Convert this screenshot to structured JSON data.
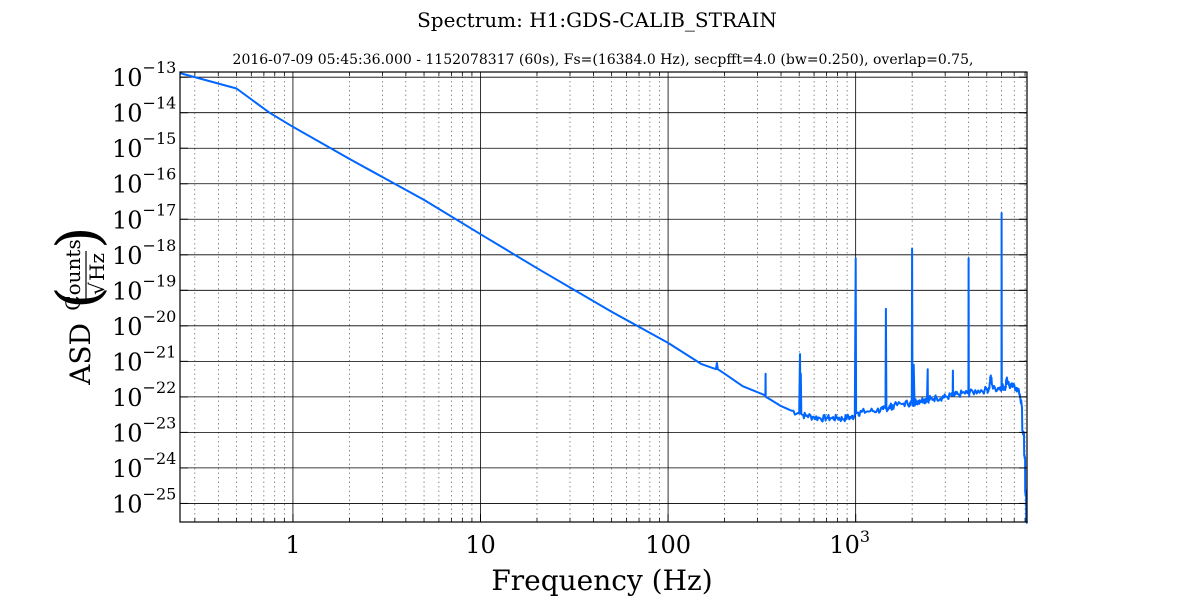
{
  "chart_data": {
    "type": "line",
    "title": "Spectrum: H1:GDS-CALIB_STRAIN",
    "subtitle": "2016-07-09 05:45:36.000 - 1152078317 (60s), Fs=(16384.0 Hz), secpfft=4.0 (bw=0.250), overlap=0.75,",
    "xlabel": "Frequency (Hz)",
    "ylabel": {
      "prefix": "ASD",
      "numerator": "Counts",
      "denominator": "Hz"
    },
    "x_scale": "log",
    "y_scale": "log",
    "xlim": [
      0.25,
      8192
    ],
    "ylim": [
      3e-26,
      1.4e-13
    ],
    "grid": true,
    "line_color": "#0066ff",
    "x_ticks": [
      {
        "value": 1,
        "label": "1"
      },
      {
        "value": 10,
        "label": "10"
      },
      {
        "value": 100,
        "label": "100"
      },
      {
        "value": 1000,
        "label": "10",
        "exponent": "3"
      }
    ],
    "y_ticks": [
      {
        "value": 1e-13,
        "label": "10",
        "exponent": "−13"
      },
      {
        "value": 1e-14,
        "label": "10",
        "exponent": "−14"
      },
      {
        "value": 1e-15,
        "label": "10",
        "exponent": "−15"
      },
      {
        "value": 1e-16,
        "label": "10",
        "exponent": "−16"
      },
      {
        "value": 1e-17,
        "label": "10",
        "exponent": "−17"
      },
      {
        "value": 1e-18,
        "label": "10",
        "exponent": "−18"
      },
      {
        "value": 1e-19,
        "label": "10",
        "exponent": "−19"
      },
      {
        "value": 1e-20,
        "label": "10",
        "exponent": "−20"
      },
      {
        "value": 1e-21,
        "label": "10",
        "exponent": "−21"
      },
      {
        "value": 1e-22,
        "label": "10",
        "exponent": "−22"
      },
      {
        "value": 1e-23,
        "label": "10",
        "exponent": "−23"
      },
      {
        "value": 1e-24,
        "label": "10",
        "exponent": "−24"
      },
      {
        "value": 1e-25,
        "label": "10",
        "exponent": "−25"
      }
    ],
    "series": [
      {
        "x": [
          0.25,
          0.5,
          0.75,
          1,
          2,
          5,
          10,
          20,
          50,
          100,
          150,
          180,
          182,
          184,
          200,
          250,
          330,
          331,
          331.5,
          332,
          350,
          400,
          450,
          500,
          505,
          508,
          510,
          513,
          520,
          550,
          600,
          650,
          700,
          750,
          800,
          850,
          900,
          950,
          990,
          1000,
          1005,
          1010,
          1030,
          1080,
          1200,
          1300,
          1400,
          1450,
          1500,
          1550,
          1600,
          1800,
          1950,
          2000,
          2010,
          2040,
          2060,
          2100,
          2200,
          2300,
          2400,
          2420,
          2460,
          2500,
          2700,
          2900,
          3000,
          3250,
          3300,
          3350,
          3500,
          3800,
          3990,
          4000,
          4010,
          4050,
          4500,
          5000,
          5150,
          5250,
          5400,
          5800,
          5990,
          6000,
          6010,
          6100,
          6300,
          6400,
          6600,
          6900,
          7200,
          7500,
          7700,
          7900,
          8000,
          8100,
          8192
        ],
        "y": [
          1.3e-13,
          4.8e-14,
          1e-14,
          4e-15,
          5e-16,
          3.5e-17,
          3.8e-18,
          4.2e-19,
          2.5e-20,
          3.3e-21,
          8.5e-22,
          6e-22,
          9e-22,
          6e-22,
          4.5e-22,
          2e-22,
          1.1e-22,
          4.5e-22,
          1.1e-22,
          1e-22,
          8.5e-23,
          5.5e-23,
          4.2e-23,
          3.5e-23,
          1.6e-21,
          3.4e-23,
          4.5e-22,
          3.3e-23,
          3.1e-23,
          3e-23,
          2.7e-23,
          2.5e-23,
          2.6e-23,
          2.5e-23,
          2.6e-23,
          2.4e-23,
          2.7e-23,
          2.6e-23,
          3e-23,
          8e-19,
          4e-23,
          3.5e-23,
          3.6e-23,
          3.8e-23,
          4e-23,
          4.2e-23,
          4.5e-23,
          3e-20,
          5e-23,
          5.5e-23,
          5.7e-23,
          6.5e-23,
          6.8e-23,
          1.5e-18,
          7e-23,
          8e-22,
          7.2e-23,
          7.5e-23,
          8e-23,
          8.3e-23,
          8.5e-23,
          6e-22,
          8.8e-23,
          9e-23,
          9.5e-23,
          1e-22,
          1e-22,
          1.1e-22,
          5.5e-22,
          1.1e-22,
          1.2e-22,
          1.3e-22,
          1.3e-22,
          8e-19,
          1.3e-22,
          1.3e-22,
          1.5e-22,
          1.6e-22,
          1.7e-22,
          4e-22,
          1.7e-22,
          1.8e-22,
          1.9e-22,
          1.5e-17,
          2e-22,
          1.9e-22,
          2e-22,
          3.5e-22,
          2e-22,
          2e-22,
          1.8e-22,
          1.2e-22,
          5e-23,
          1e-23,
          2e-24,
          2e-25,
          3e-26
        ]
      }
    ]
  }
}
